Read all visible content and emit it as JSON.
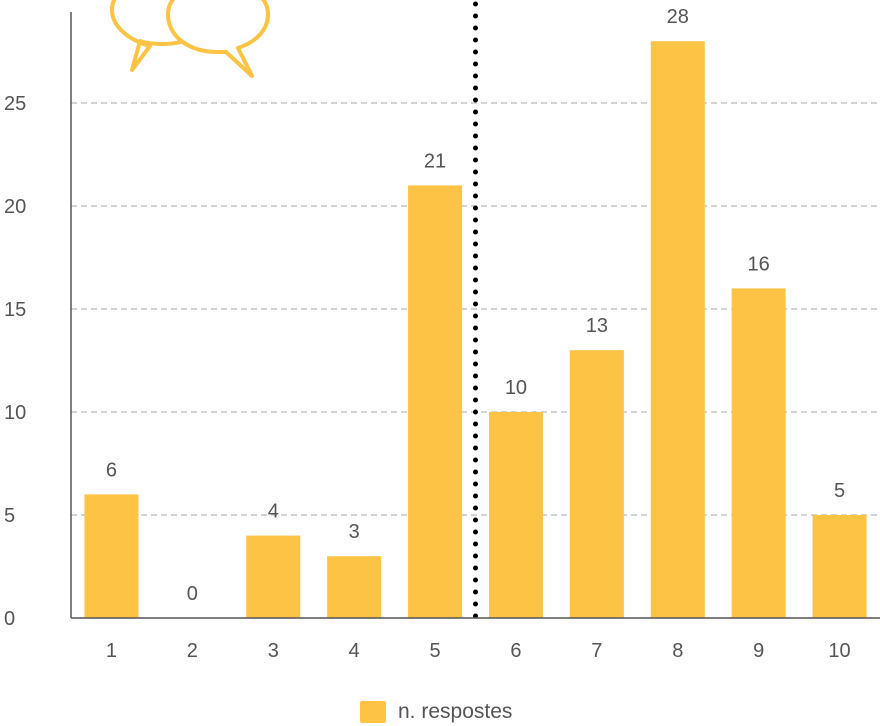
{
  "chart_data": {
    "type": "bar",
    "categories": [
      "1",
      "2",
      "3",
      "4",
      "5",
      "6",
      "7",
      "8",
      "9",
      "10"
    ],
    "series": [
      {
        "name": "n. respostes",
        "values": [
          6,
          0,
          4,
          3,
          21,
          10,
          13,
          28,
          16,
          5
        ]
      }
    ],
    "ylim": [
      0,
      29
    ],
    "yticks": [
      0,
      5,
      10,
      15,
      20,
      25
    ],
    "grid": true,
    "grid_style": "dashed",
    "data_labels": true,
    "legend_position": "bottom-center",
    "divider_between": [
      "5",
      "6"
    ],
    "colors": {
      "bar": "#fdc344",
      "axis": "#555555",
      "grid": "#aaaaaa",
      "divider": "#000000",
      "icon": "#fdc344"
    },
    "icon": "speech-bubbles-icon"
  }
}
